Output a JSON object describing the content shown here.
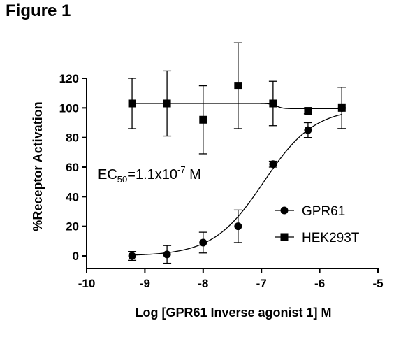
{
  "figure_label": "Figure 1",
  "chart_data": {
    "type": "scatter",
    "xlabel": "Log [GPR61 Inverse agonist 1] M",
    "ylabel": "%Receptor Activation",
    "xlim": [
      -10,
      -5
    ],
    "ylim": [
      -10,
      120
    ],
    "xticks": [
      -10,
      -9,
      -8,
      -7,
      -6,
      -5
    ],
    "yticks": [
      0,
      20,
      40,
      60,
      80,
      100,
      120
    ],
    "grid": false,
    "legend_position": "middle-right",
    "annotation": {
      "prefix": "EC",
      "subscript": "50",
      "value": "=1.1x10",
      "exponent": "-7",
      "suffix": " M"
    },
    "series": [
      {
        "name": "GPR61",
        "marker": "circle",
        "x": [
          -9.22,
          -8.62,
          -8.0,
          -7.4,
          -6.8,
          -6.2,
          -5.62
        ],
        "y": [
          0,
          1,
          9,
          20,
          62,
          85,
          100
        ],
        "err": [
          3,
          6,
          7,
          11,
          2,
          5,
          14
        ],
        "fit": "sigmoid",
        "fit_params": {
          "bottom": 0,
          "top": 100,
          "logEC50": -6.96,
          "hill": 1.0
        }
      },
      {
        "name": "HEK293T",
        "marker": "square",
        "x": [
          -9.22,
          -8.62,
          -8.0,
          -7.4,
          -6.8,
          -6.2,
          -5.62
        ],
        "y": [
          103,
          103,
          92,
          115,
          103,
          98,
          100
        ],
        "err": [
          17,
          22,
          23,
          29,
          15,
          2,
          14
        ],
        "fit": "step",
        "fit_params": {
          "top": 103,
          "bottom": 99.5,
          "logEC50": -6.74,
          "hill": 8
        }
      }
    ]
  }
}
